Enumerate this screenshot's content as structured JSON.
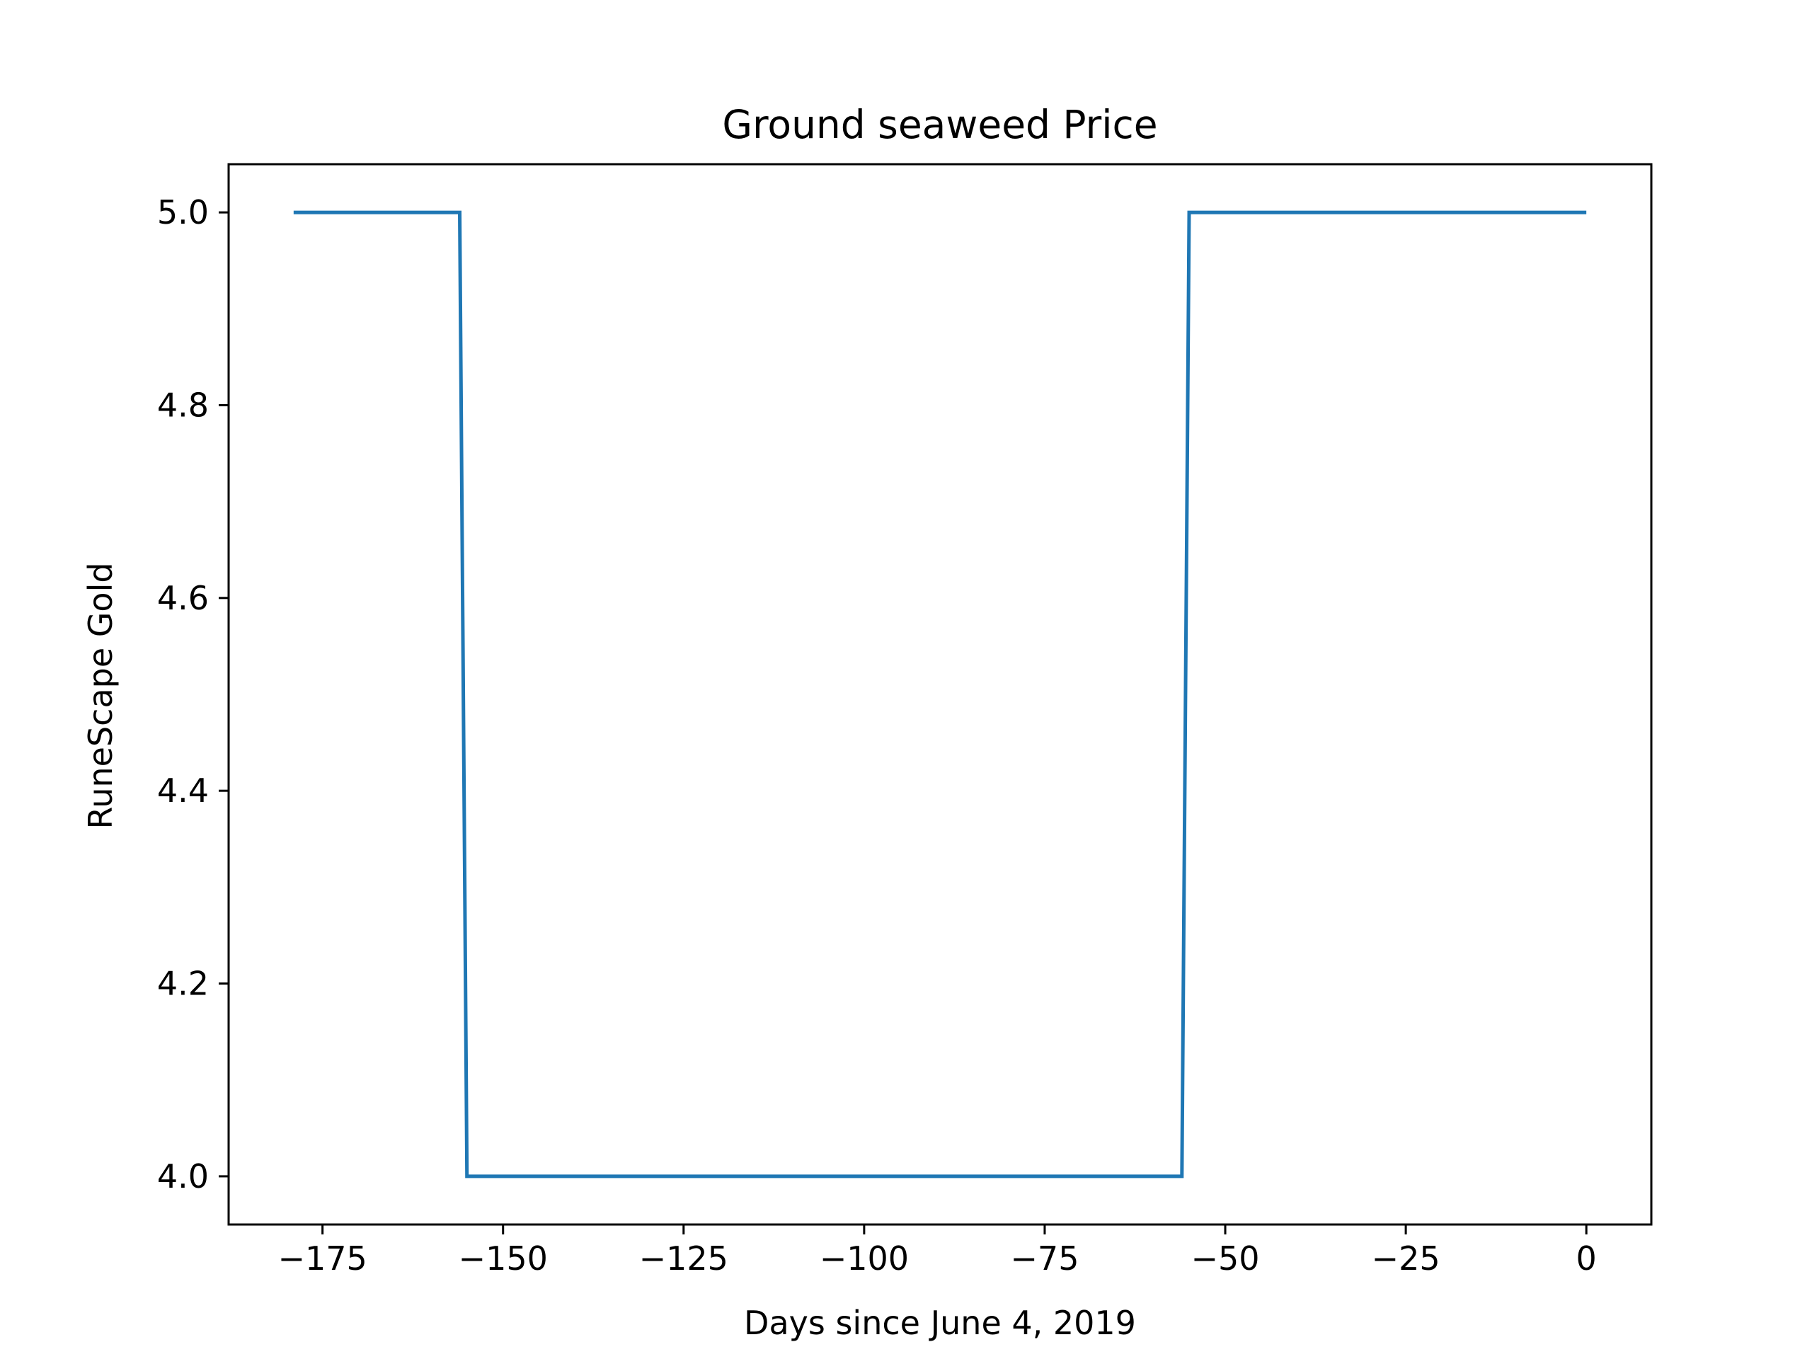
{
  "chart_data": {
    "type": "line",
    "title": "Ground seaweed Price",
    "xlabel": "Days since June 4, 2019",
    "ylabel": "RuneScape Gold",
    "xlim": [
      -188,
      9
    ],
    "ylim": [
      3.95,
      5.05
    ],
    "xticks": [
      -175,
      -150,
      -125,
      -100,
      -75,
      -50,
      -25,
      0
    ],
    "xtick_labels": [
      "−175",
      "−150",
      "−125",
      "−100",
      "−75",
      "−50",
      "−25",
      "0"
    ],
    "yticks": [
      4.0,
      4.2,
      4.4,
      4.6,
      4.8,
      5.0
    ],
    "ytick_labels": [
      "4.0",
      "4.2",
      "4.4",
      "4.6",
      "4.8",
      "5.0"
    ],
    "grid": false,
    "series": [
      {
        "color": "#1f77b4",
        "x": [
          -179,
          -156,
          -155,
          -56,
          -55,
          0
        ],
        "y": [
          5.0,
          5.0,
          4.0,
          4.0,
          5.0,
          5.0
        ]
      }
    ]
  }
}
